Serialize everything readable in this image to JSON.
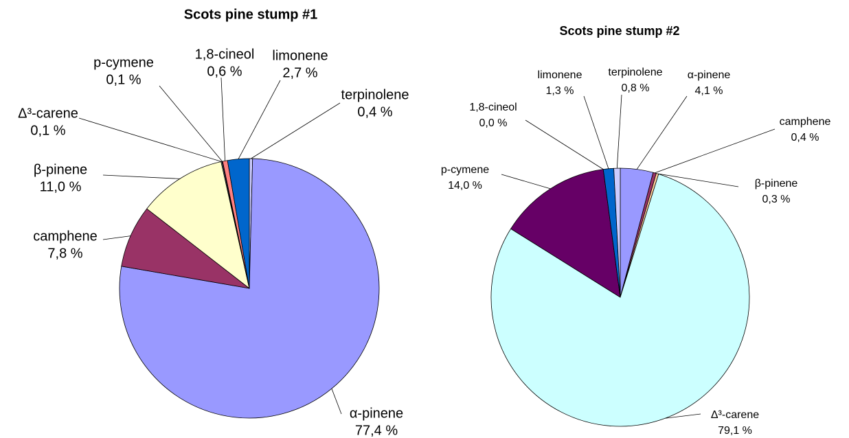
{
  "chart_data": [
    {
      "type": "pie",
      "title": "Scots pine stump #1",
      "categories": [
        "terpinolene",
        "α-pinene",
        "camphene",
        "β-pinene",
        "Δ³-carene",
        "p-cymene",
        "1,8-cineol",
        "limonene"
      ],
      "values": [
        0.4,
        77.4,
        7.8,
        11.0,
        0.1,
        0.1,
        0.6,
        2.7
      ],
      "value_labels": [
        "0,4 %",
        "77,4 %",
        "7,8 %",
        "11,0 %",
        "0,1 %",
        "0,1 %",
        "0,6 %",
        "2,7 %"
      ],
      "colors": [
        "#ccccff",
        "#9999ff",
        "#993366",
        "#ffffcc",
        "#ccffff",
        "#660066",
        "#ff8080",
        "#0066cc"
      ]
    },
    {
      "type": "pie",
      "title": "Scots pine stump #2",
      "categories": [
        "α-pinene",
        "camphene",
        "β-pinene",
        "Δ³-carene",
        "p-cymene",
        "1,8-cineol",
        "limonene",
        "terpinolene"
      ],
      "values": [
        4.1,
        0.4,
        0.3,
        79.1,
        14.0,
        0.0,
        1.3,
        0.8
      ],
      "value_labels": [
        "4,1 %",
        "0,4 %",
        "0,3 %",
        "79,1 %",
        "14,0 %",
        "0,0 %",
        "1,3 %",
        "0,8 %"
      ],
      "colors": [
        "#9999ff",
        "#993366",
        "#ffcc99",
        "#ccffff",
        "#660066",
        "#ff8080",
        "#0066cc",
        "#ccccff"
      ]
    }
  ]
}
